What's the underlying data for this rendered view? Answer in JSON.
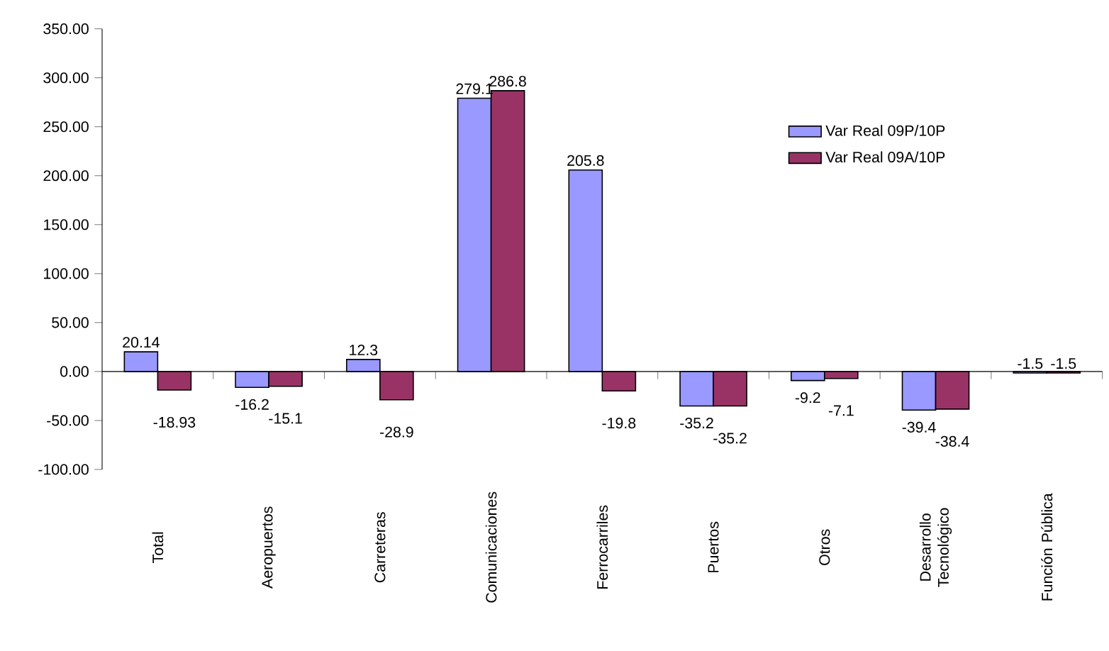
{
  "chart_data": {
    "type": "bar",
    "categories": [
      "Total",
      "Aeropuertos",
      "Carreteras",
      "Comunicaciones",
      "Ferrocarriles",
      "Puertos",
      "Otros",
      "Desarrollo Tecnológico",
      "Función Pública"
    ],
    "series": [
      {
        "name": "Var Real 09P/10P",
        "color": "#9999ff",
        "values": [
          20.14,
          -16.2,
          12.3,
          279.1,
          205.8,
          -35.2,
          -9.2,
          -39.4,
          -1.5
        ]
      },
      {
        "name": "Var Real 09A/10P",
        "color": "#993366",
        "values": [
          -18.93,
          -15.1,
          -28.9,
          286.8,
          -19.8,
          -35.2,
          -7.1,
          -38.4,
          -1.5
        ]
      }
    ],
    "ylim": [
      -100,
      350
    ],
    "yticks": [
      {
        "value": -100,
        "label": "-100.00"
      },
      {
        "value": -50,
        "label": "-50.00"
      },
      {
        "value": 0,
        "label": "0.00"
      },
      {
        "value": 50,
        "label": "50.00"
      },
      {
        "value": 100,
        "label": "100.00"
      },
      {
        "value": 150,
        "label": "150.00"
      },
      {
        "value": 200,
        "label": "200.00"
      },
      {
        "value": 250,
        "label": "250.00"
      },
      {
        "value": 300,
        "label": "300.00"
      },
      {
        "value": 350,
        "label": "350.00"
      }
    ],
    "data_labels": true,
    "legend": "right"
  }
}
